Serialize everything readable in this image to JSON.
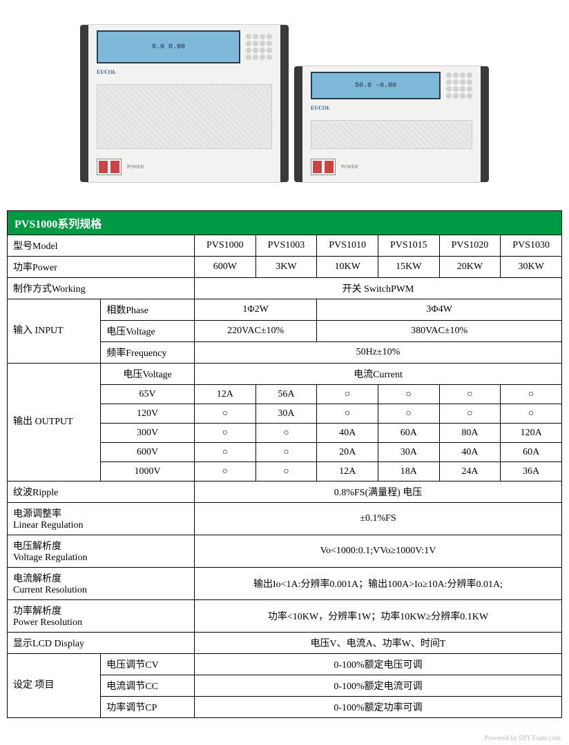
{
  "image": {
    "lcd_large_text": "0.0  0.00",
    "lcd_small_text": "50.0  -0.00",
    "logo": "EUCOL",
    "power_label": "POWER"
  },
  "table": {
    "title": "PVS1000系列规格",
    "headers": {
      "model": "型号Model",
      "power": "功率Power",
      "working": "制作方式Working",
      "input": "输入 INPUT",
      "phase": "相数Phase",
      "voltage": "电压Voltage",
      "frequency": "频率Frequency",
      "output": "输出 OUTPUT",
      "ripple": "纹波Ripple",
      "linear_reg": "电源调整率",
      "linear_reg2": "Linear Regulation",
      "volt_reg": "电压解析度",
      "volt_reg2": "Voltage Regulation",
      "curr_res": "电流解析度",
      "curr_res2": "Current Resolution",
      "power_res": "功率解析度",
      "power_res2": "Power Resolution",
      "display": "显示LCD Display",
      "setting": "设定 项目",
      "cv": "电压调节CV",
      "cc": "电流调节CC",
      "cp": "功率调节CP",
      "current": "电流Current"
    },
    "models": [
      "PVS1000",
      "PVS1003",
      "PVS1010",
      "PVS1015",
      "PVS1020",
      "PVS1030"
    ],
    "power_row": [
      "600W",
      "3KW",
      "10KW",
      "15KW",
      "20KW",
      "30KW"
    ],
    "working_val": "开关 SwitchPWM",
    "phase_vals": [
      "1Φ2W",
      "3Φ4W"
    ],
    "voltage_vals": [
      "220VAC±10%",
      "380VAC±10%"
    ],
    "frequency_val": "50Hz±10%",
    "out_voltages": [
      "65V",
      "120V",
      "300V",
      "600V",
      "1000V"
    ],
    "out_matrix": [
      [
        "12A",
        "56A",
        "○",
        "○",
        "○",
        "○"
      ],
      [
        "○",
        "30A",
        "○",
        "○",
        "○",
        "○"
      ],
      [
        "○",
        "○",
        "40A",
        "60A",
        "80A",
        "120A"
      ],
      [
        "○",
        "○",
        "20A",
        "30A",
        "40A",
        "60A"
      ],
      [
        "○",
        "○",
        "12A",
        "18A",
        "24A",
        "36A"
      ]
    ],
    "ripple_val": "0.8%FS(满量程) 电压",
    "linear_val": "±0.1%FS",
    "volt_reg_val": "Vo<1000:0.1;VVo≥1000V:1V",
    "curr_res_val": "输出Io<1A:分辨率0.001A；输出100A>Io≥10A:分辨率0.01A;",
    "power_res_val": "功率<10KW，分辨率1W；功率10KW≥分辨率0.1KW",
    "display_val": "电压V、电流A、功率W、时间T",
    "cv_val": "0-100%额定电压可调",
    "cc_val": "0-100%额定电流可调",
    "cp_val": "0-100%额定功率可调"
  },
  "footer": "Powered by DIYTrade.com",
  "styling": {
    "title_bg": "#009944",
    "title_color": "#ffffff",
    "border_color": "#000000",
    "font_size": 14,
    "font_family": "SimSun",
    "lcd_bg": "#7fb8d8",
    "device_bg": "#f2f2f0"
  }
}
